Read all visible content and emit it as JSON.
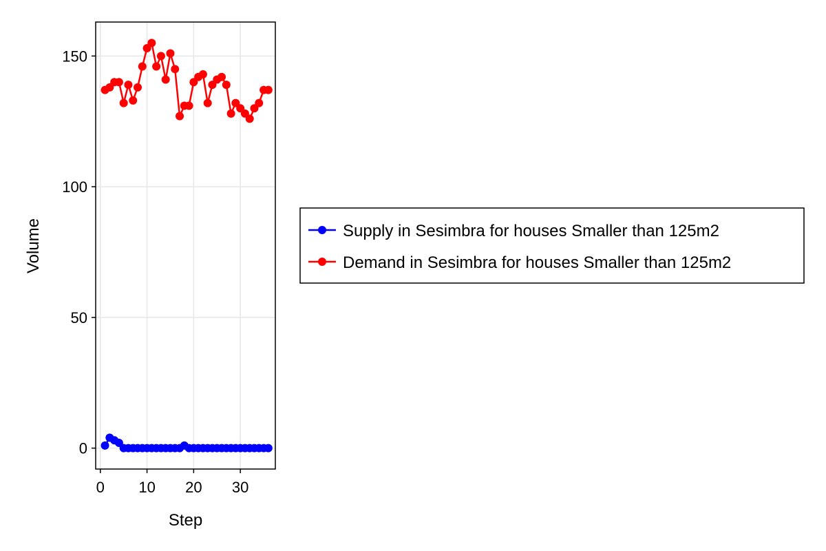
{
  "chart_data": {
    "type": "line",
    "xlabel": "Step",
    "ylabel": "Volume",
    "xlim": [
      -1,
      37.5
    ],
    "ylim": [
      -8,
      163
    ],
    "xticks": [
      0,
      10,
      20,
      30
    ],
    "yticks": [
      0,
      50,
      100,
      150
    ],
    "grid": true,
    "legend_position": "right",
    "series": [
      {
        "name": "Supply in Sesimbra for houses Smaller than 125m2",
        "color": "#0000ff",
        "x": [
          1,
          2,
          3,
          4,
          5,
          6,
          7,
          8,
          9,
          10,
          11,
          12,
          13,
          14,
          15,
          16,
          17,
          18,
          19,
          20,
          21,
          22,
          23,
          24,
          25,
          26,
          27,
          28,
          29,
          30,
          31,
          32,
          33,
          34,
          35,
          36
        ],
        "values": [
          1,
          4,
          3,
          2,
          0,
          0,
          0,
          0,
          0,
          0,
          0,
          0,
          0,
          0,
          0,
          0,
          0,
          1,
          0,
          0,
          0,
          0,
          0,
          0,
          0,
          0,
          0,
          0,
          0,
          0,
          0,
          0,
          0,
          0,
          0,
          0
        ]
      },
      {
        "name": "Demand in Sesimbra for houses Smaller than 125m2",
        "color": "#ff0000",
        "x": [
          1,
          2,
          3,
          4,
          5,
          6,
          7,
          8,
          9,
          10,
          11,
          12,
          13,
          14,
          15,
          16,
          17,
          18,
          19,
          20,
          21,
          22,
          23,
          24,
          25,
          26,
          27,
          28,
          29,
          30,
          31,
          32,
          33,
          34,
          35,
          36
        ],
        "values": [
          137,
          138,
          140,
          140,
          132,
          139,
          133,
          138,
          146,
          153,
          155,
          146,
          150,
          141,
          151,
          145,
          127,
          131,
          131,
          140,
          142,
          143,
          132,
          139,
          141,
          142,
          139,
          128,
          132,
          130,
          128,
          126,
          130,
          132,
          137,
          137
        ]
      }
    ]
  }
}
